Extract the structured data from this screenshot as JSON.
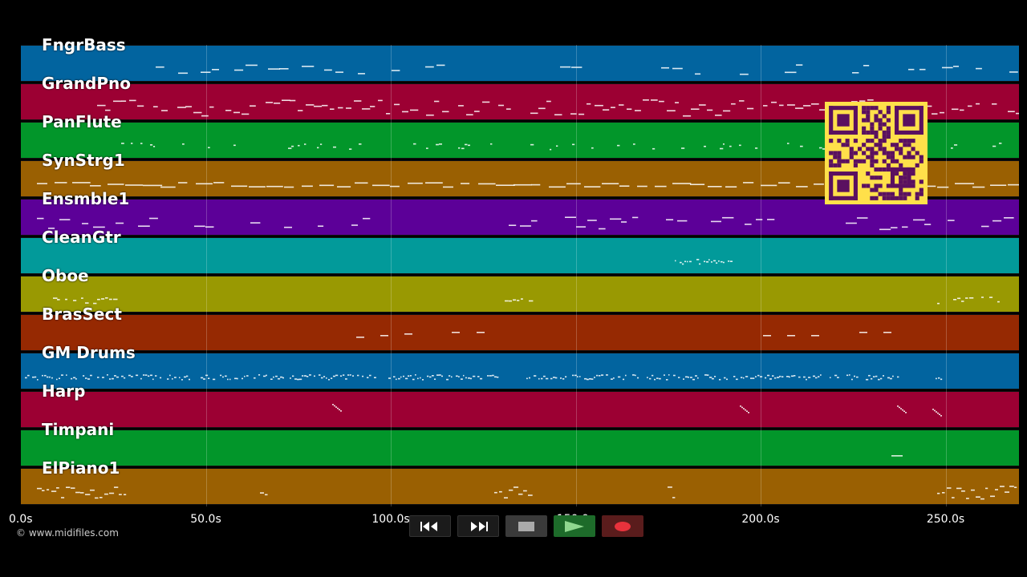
{
  "tracks": [
    {
      "name": "FngrBass",
      "color": "#02649f"
    },
    {
      "name": "GrandPno",
      "color": "#9c0033"
    },
    {
      "name": "PanFlute",
      "color": "#02962a"
    },
    {
      "name": "SynStrg1",
      "color": "#9a6002"
    },
    {
      "name": "Ensmble1",
      "color": "#5c0098"
    },
    {
      "name": "CleanGtr",
      "color": "#029a9a"
    },
    {
      "name": "Oboe",
      "color": "#999902"
    },
    {
      "name": "BrasSect",
      "color": "#962902"
    },
    {
      "name": "GM Drums",
      "color": "#02649f"
    },
    {
      "name": "Harp",
      "color": "#9c0033"
    },
    {
      "name": "Timpani",
      "color": "#02962a"
    },
    {
      "name": "ElPiano1",
      "color": "#9a6002"
    }
  ],
  "timeline": {
    "duration_s": 270,
    "ticks": [
      "0.0s",
      "50.0s",
      "100.0s",
      "150.0s",
      "200.0s",
      "250.0s"
    ]
  },
  "copyright": "© www.midifiles.com",
  "transport": {
    "rewind_icon": "rewind-icon",
    "forward_icon": "fast-forward-icon",
    "stop_icon": "stop-icon",
    "play_icon": "play-icon",
    "record_icon": "record-icon"
  },
  "qr_code": {
    "color": "#ffe04a",
    "dark": "#5a1060"
  }
}
